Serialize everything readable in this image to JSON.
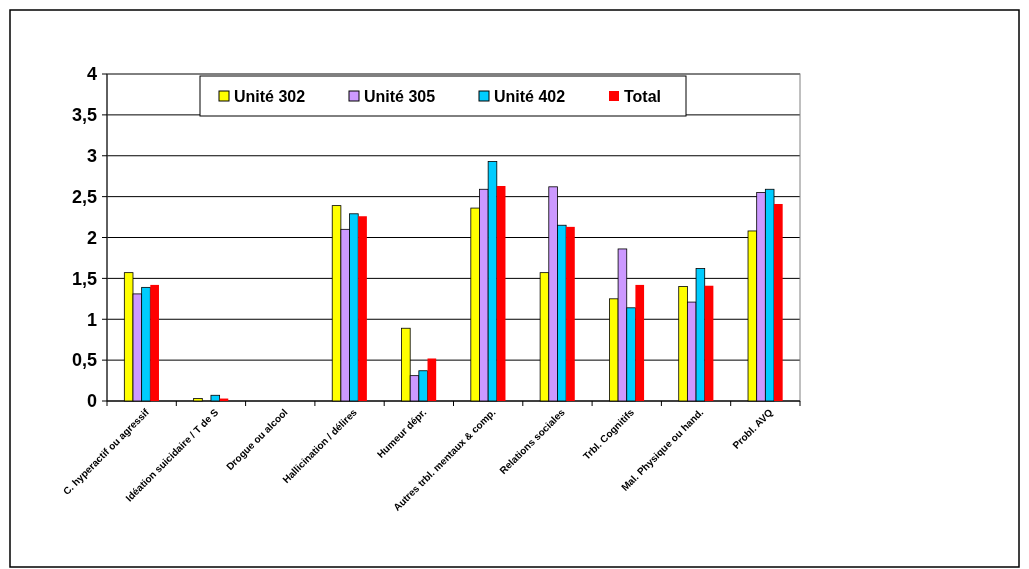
{
  "chart_data": {
    "type": "bar",
    "categories": [
      "C. hyperactif ou agressif",
      "Idéation suicidaire / T de S",
      "Drogue ou alcool",
      "Hallicination / délires",
      "Humeur dépr.",
      "Autres trbl. mentaux & comp.",
      "Relations sociales",
      "Trbl. Cognitifs",
      "Mal. Physique ou hand.",
      "Probl. AVQ"
    ],
    "series": [
      {
        "name": "Unité 302",
        "color": "#ffff00",
        "values": [
          1.57,
          0.03,
          0,
          2.39,
          0.89,
          2.36,
          1.57,
          1.25,
          1.4,
          2.08
        ]
      },
      {
        "name": "Unité 305",
        "color": "#cc99ff",
        "values": [
          1.31,
          0,
          0,
          2.1,
          0.31,
          2.59,
          2.62,
          1.86,
          1.21,
          2.55
        ]
      },
      {
        "name": "Unité 402",
        "color": "#00ccff",
        "values": [
          1.39,
          0.07,
          0,
          2.29,
          0.37,
          2.93,
          2.15,
          1.14,
          1.62,
          2.59
        ]
      },
      {
        "name": "Total",
        "color": "#ff0000",
        "values": [
          1.42,
          0.03,
          0,
          2.26,
          0.52,
          2.63,
          2.13,
          1.42,
          1.41,
          2.41
        ]
      }
    ],
    "ylim": [
      0,
      4
    ],
    "yticks": [
      0,
      {
        "value": 0.5,
        "label": "0,5"
      },
      1,
      {
        "value": 1.5,
        "label": "1,5"
      },
      2,
      {
        "value": 2.5,
        "label": "2,5"
      },
      3,
      {
        "value": 3.5,
        "label": "3,5"
      },
      4
    ],
    "grid": "y",
    "legend": "top"
  }
}
